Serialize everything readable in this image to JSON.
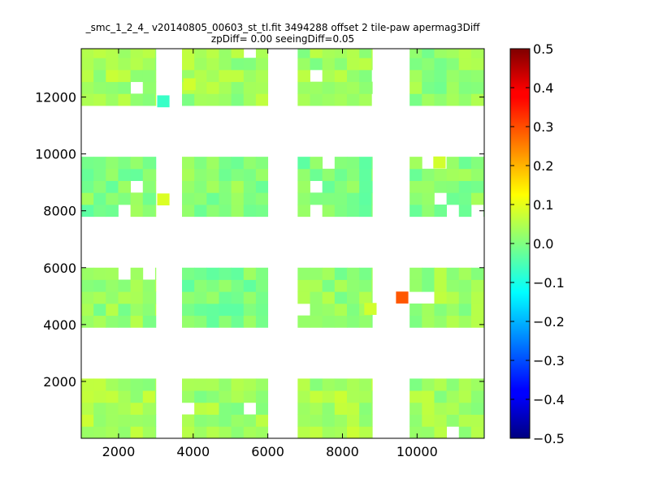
{
  "chart_data": {
    "type": "heatmap",
    "title": "_smc_1_2_4_ v20140805_00603_st_tl.fit 3494288 offset 2 tile-paw apermag3Diff",
    "subtitle": "zpDiff= 0.00 seeingDiff=0.05",
    "xlabel": "",
    "ylabel": "",
    "xlim": [
      1000,
      11800
    ],
    "ylim": [
      0,
      13700
    ],
    "x_ticks": [
      "2000",
      "4000",
      "6000",
      "8000",
      "10000"
    ],
    "y_ticks": [
      "2000",
      "4000",
      "6000",
      "8000",
      "10000",
      "12000"
    ],
    "colorbar": {
      "colormap": "jet",
      "vmin": -0.5,
      "vmax": 0.5,
      "ticks": [
        "0.5",
        "0.4",
        "0.3",
        "0.2",
        "0.1",
        "0.0",
        "−0.1",
        "−0.2",
        "−0.3",
        "−0.4",
        "−0.5"
      ]
    },
    "cell_size": [
      330,
      420
    ],
    "grid": false,
    "blocks": [
      {
        "x0": 1000,
        "x1": 3000,
        "y0": 0,
        "y1": 2100,
        "mean": 0.04
      },
      {
        "x0": 3700,
        "x1": 6000,
        "y0": 0,
        "y1": 2100,
        "mean": 0.03
      },
      {
        "x0": 6800,
        "x1": 8800,
        "y0": 0,
        "y1": 2100,
        "mean": 0.04
      },
      {
        "x0": 9800,
        "x1": 11800,
        "y0": 0,
        "y1": 2100,
        "mean": 0.03
      },
      {
        "x0": 1000,
        "x1": 3000,
        "y0": 3900,
        "y1": 6000,
        "mean": 0.02
      },
      {
        "x0": 3700,
        "x1": 6000,
        "y0": 3900,
        "y1": 6000,
        "mean": 0.0
      },
      {
        "x0": 6800,
        "x1": 8800,
        "y0": 3900,
        "y1": 6000,
        "mean": 0.02
      },
      {
        "x0": 9800,
        "x1": 11800,
        "y0": 3900,
        "y1": 6000,
        "mean": 0.03
      },
      {
        "x0": 1000,
        "x1": 3000,
        "y0": 7800,
        "y1": 9900,
        "mean": 0.0
      },
      {
        "x0": 3700,
        "x1": 6000,
        "y0": 7800,
        "y1": 9900,
        "mean": 0.01
      },
      {
        "x0": 6800,
        "x1": 8800,
        "y0": 7800,
        "y1": 9900,
        "mean": 0.0
      },
      {
        "x0": 9800,
        "x1": 11800,
        "y0": 7800,
        "y1": 9900,
        "mean": 0.01
      },
      {
        "x0": 1000,
        "x1": 3000,
        "y0": 11700,
        "y1": 13700,
        "mean": 0.04
      },
      {
        "x0": 3700,
        "x1": 6000,
        "y0": 11700,
        "y1": 13700,
        "mean": 0.03
      },
      {
        "x0": 6800,
        "x1": 8800,
        "y0": 11700,
        "y1": 13700,
        "mean": 0.03
      },
      {
        "x0": 9800,
        "x1": 11800,
        "y0": 11700,
        "y1": 13700,
        "mean": 0.02
      }
    ],
    "outliers": [
      {
        "x": 9600,
        "y": 4950,
        "value": 0.29
      },
      {
        "x": 8750,
        "y": 4550,
        "value": 0.08
      },
      {
        "x": 3200,
        "y": 8400,
        "value": 0.09
      },
      {
        "x": 3200,
        "y": 11850,
        "value": -0.07
      },
      {
        "x": 3900,
        "y": 12450,
        "value": 0.08
      },
      {
        "x": 10600,
        "y": 9700,
        "value": 0.08
      }
    ]
  }
}
